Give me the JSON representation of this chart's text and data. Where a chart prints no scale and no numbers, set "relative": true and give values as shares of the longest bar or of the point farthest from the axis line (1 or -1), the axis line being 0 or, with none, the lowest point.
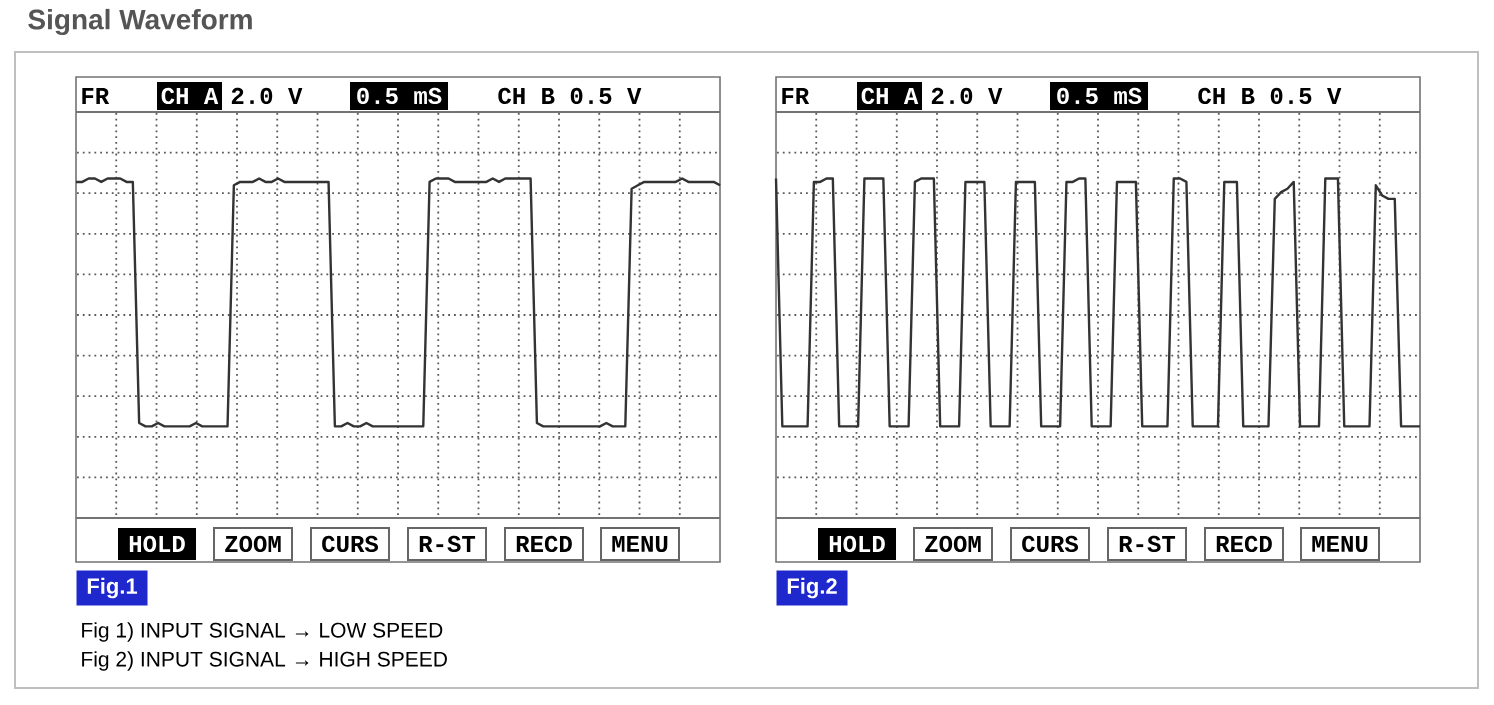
{
  "chart_data": [
    {
      "type": "line",
      "title": "Signal Waveform",
      "relative": true,
      "grid": true,
      "categories": [
        null,
        null,
        null,
        null,
        null,
        null,
        null,
        null,
        null,
        null,
        null,
        null,
        null,
        null,
        null,
        null,
        null,
        null,
        null,
        null,
        null,
        null,
        null,
        null,
        null,
        null,
        null,
        null,
        null,
        null,
        null,
        null,
        null,
        null,
        null,
        null,
        null,
        null,
        null,
        null,
        null,
        null,
        null,
        null,
        null,
        null,
        null,
        null,
        null,
        null,
        null,
        null,
        null,
        null,
        null,
        null,
        null,
        null,
        null,
        null,
        null,
        null,
        null,
        null,
        null,
        null,
        null,
        null,
        null,
        null,
        null,
        null,
        null,
        null,
        null,
        null,
        null,
        null,
        null,
        null,
        null,
        null,
        null,
        null,
        null,
        null,
        null,
        null,
        null,
        null,
        null,
        null,
        null,
        null,
        null,
        null,
        null,
        null,
        null,
        null,
        null,
        null,
        null
      ],
      "series": [
        {
          "color": "#333333",
          "values": [
            0.99,
            0.99,
            1,
            1,
            0.99,
            1,
            1,
            1,
            0.99,
            0.99,
            0.28,
            0.27,
            0.27,
            0.28,
            0.27,
            0.27,
            0.27,
            0.27,
            0.27,
            0.28,
            0.27,
            0.27,
            0.27,
            0.27,
            0.27,
            0.98,
            0.99,
            0.99,
            0.99,
            1,
            0.99,
            0.99,
            1,
            0.99,
            0.99,
            0.99,
            0.99,
            0.99,
            0.99,
            0.99,
            0.99,
            0.27,
            0.27,
            0.28,
            0.27,
            0.27,
            0.28,
            0.27,
            0.27,
            0.27,
            0.27,
            0.27,
            0.27,
            0.27,
            0.27,
            0.27,
            0.99,
            1,
            1,
            1,
            0.99,
            0.99,
            0.99,
            0.99,
            0.99,
            0.99,
            1,
            0.99,
            1,
            1,
            1,
            1,
            1,
            0.28,
            0.27,
            0.27,
            0.27,
            0.27,
            0.27,
            0.27,
            0.27,
            0.27,
            0.27,
            0.27,
            0.28,
            0.27,
            0.27,
            0.27,
            0.97,
            0.98,
            0.99,
            0.99,
            0.99,
            0.99,
            0.99,
            0.99,
            1,
            0.99,
            0.99,
            0.99,
            0.99,
            0.99,
            0.98
          ]
        }
      ],
      "annotations": [
        "FR",
        "CH A",
        "2.0 V",
        "0.5 mS",
        "CH B 0.5 V",
        "HOLD",
        "ZOOM",
        "CURS",
        "R-ST",
        "RECD",
        "MENU",
        "Fig.1",
        "Fig 1) INPUT SIGNAL → LOW SPEED",
        "Fig 2) INPUT SIGNAL → HIGH SPEED"
      ]
    },
    {
      "type": "line",
      "relative": true,
      "grid": true,
      "categories": [
        null,
        null,
        null,
        null,
        null,
        null,
        null,
        null,
        null,
        null,
        null,
        null,
        null,
        null,
        null,
        null,
        null,
        null,
        null,
        null,
        null,
        null,
        null,
        null,
        null,
        null,
        null,
        null,
        null,
        null,
        null,
        null,
        null,
        null,
        null,
        null,
        null,
        null,
        null,
        null,
        null,
        null,
        null,
        null,
        null,
        null,
        null,
        null,
        null,
        null,
        null,
        null,
        null,
        null,
        null,
        null,
        null,
        null,
        null,
        null,
        null,
        null,
        null,
        null,
        null,
        null,
        null,
        null,
        null,
        null,
        null,
        null,
        null,
        null,
        null,
        null,
        null,
        null,
        null,
        null,
        null,
        null,
        null,
        null,
        null,
        null,
        null,
        null,
        null,
        null,
        null,
        null,
        null,
        null,
        null,
        null,
        null,
        null,
        null,
        null,
        null,
        null,
        null
      ],
      "series": [
        {
          "color": "#333333",
          "values": [
            1,
            0.27,
            0.27,
            0.27,
            0.27,
            0.27,
            0.99,
            0.99,
            1,
            1,
            0.27,
            0.27,
            0.27,
            0.27,
            1,
            1,
            1,
            1,
            0.27,
            0.27,
            0.27,
            0.27,
            0.99,
            1,
            1,
            1,
            0.27,
            0.27,
            0.27,
            0.27,
            0.99,
            0.99,
            0.99,
            0.99,
            0.27,
            0.27,
            0.27,
            0.27,
            0.99,
            0.99,
            0.99,
            0.99,
            0.27,
            0.27,
            0.27,
            0.27,
            0.99,
            0.99,
            1,
            1,
            0.27,
            0.27,
            0.27,
            0.27,
            0.99,
            0.99,
            0.99,
            0.99,
            0.27,
            0.27,
            0.27,
            0.27,
            0.27,
            1,
            1,
            0.99,
            0.27,
            0.27,
            0.27,
            0.27,
            0.27,
            0.99,
            0.99,
            0.99,
            0.27,
            0.27,
            0.27,
            0.27,
            0.27,
            0.94,
            0.96,
            0.97,
            0.99,
            0.27,
            0.27,
            0.27,
            0.27,
            1,
            1,
            1,
            0.27,
            0.27,
            0.27,
            0.27,
            0.27,
            0.98,
            0.95,
            0.94,
            0.94,
            0.27,
            0.27,
            0.27,
            0.27
          ]
        }
      ],
      "annotations": [
        "FR",
        "CH A",
        "2.0 V",
        "0.5 mS",
        "CH B 0.5 V",
        "HOLD",
        "ZOOM",
        "CURS",
        "R-ST",
        "RECD",
        "MENU",
        "Fig.2"
      ]
    }
  ]
}
